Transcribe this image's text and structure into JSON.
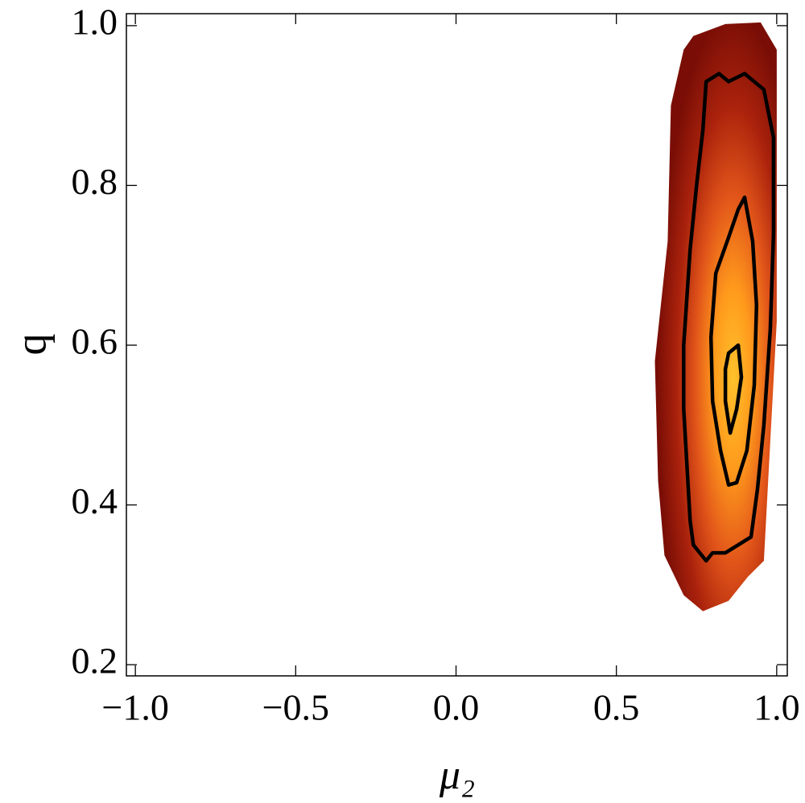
{
  "chart_data": {
    "type": "contour",
    "xlabel": "μ₂",
    "ylabel": "q",
    "xlim": [
      -1.028,
      1.033
    ],
    "ylim": [
      0.186,
      1.015
    ],
    "xticks": [
      {
        "value": -1,
        "label": "−1.0"
      },
      {
        "value": -0.5,
        "label": "−0.5"
      },
      {
        "value": 0,
        "label": "0.0"
      },
      {
        "value": 0.5,
        "label": "0.5"
      },
      {
        "value": 1,
        "label": "1.0"
      }
    ],
    "yticks": [
      0.2,
      0.4,
      0.6,
      0.8,
      {
        "value": 1,
        "label": "1.0"
      }
    ],
    "colormap": [
      "#ffc22c",
      "#ff9a1c",
      "#e2561a",
      "#aa220c",
      "#7a0e06"
    ],
    "contour_color": "#000000",
    "density_outline": {
      "x": [
        0.74,
        0.84,
        0.95,
        1.0,
        1.0,
        1.0,
        0.98,
        0.96,
        0.91,
        0.85,
        0.77,
        0.71,
        0.65,
        0.63,
        0.62,
        0.66,
        0.67,
        0.71
      ],
      "y": [
        0.987,
        1.002,
        1.004,
        0.97,
        0.83,
        0.63,
        0.48,
        0.33,
        0.31,
        0.28,
        0.267,
        0.287,
        0.337,
        0.43,
        0.58,
        0.73,
        0.9,
        0.97
      ]
    },
    "contours": [
      {
        "x": [
          0.78,
          0.82,
          0.85,
          0.9,
          0.96,
          0.99,
          0.99,
          0.98,
          0.96,
          0.94,
          0.92,
          0.88,
          0.84,
          0.8,
          0.78,
          0.74,
          0.73,
          0.72,
          0.71,
          0.71,
          0.73,
          0.75,
          0.77,
          0.78
        ],
        "y": [
          0.93,
          0.94,
          0.93,
          0.94,
          0.92,
          0.86,
          0.74,
          0.62,
          0.5,
          0.42,
          0.36,
          0.35,
          0.34,
          0.34,
          0.33,
          0.35,
          0.38,
          0.45,
          0.52,
          0.6,
          0.72,
          0.8,
          0.87,
          0.93
        ]
      },
      {
        "x": [
          0.9,
          0.925,
          0.937,
          0.93,
          0.907,
          0.875,
          0.85,
          0.825,
          0.8,
          0.795,
          0.81,
          0.85,
          0.88,
          0.9
        ],
        "y": [
          0.785,
          0.73,
          0.65,
          0.55,
          0.468,
          0.428,
          0.425,
          0.468,
          0.53,
          0.61,
          0.69,
          0.735,
          0.77,
          0.785
        ]
      },
      {
        "x": [
          0.88,
          0.89,
          0.875,
          0.855,
          0.84,
          0.84,
          0.85,
          0.88
        ],
        "y": [
          0.6,
          0.56,
          0.52,
          0.49,
          0.53,
          0.57,
          0.59,
          0.6
        ]
      }
    ]
  }
}
